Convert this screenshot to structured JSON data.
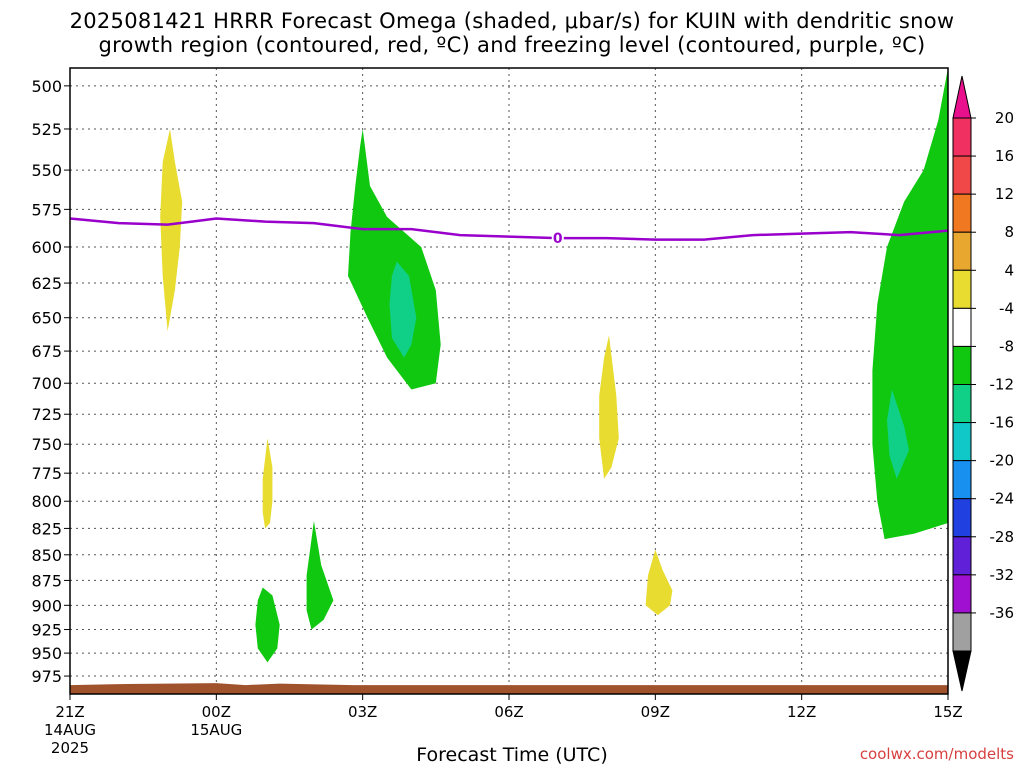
{
  "title_line1": "2025081421 HRRR Forecast Omega (shaded, μbar/s) for KUIN with dendritic snow",
  "title_line2": "growth region (contoured, red, ºC) and freezing level (contoured, purple, ºC)",
  "credit": "coolwx.com/modelts",
  "chart_data": {
    "type": "area",
    "xlabel": "Forecast Time (UTC)",
    "ylabel": "",
    "x_ticks": [
      {
        "hour": 0,
        "label": "21Z",
        "sub": [
          "14AUG",
          "2025"
        ]
      },
      {
        "hour": 3,
        "label": "00Z",
        "sub": [
          "15AUG"
        ]
      },
      {
        "hour": 6,
        "label": "03Z",
        "sub": []
      },
      {
        "hour": 9,
        "label": "06Z",
        "sub": []
      },
      {
        "hour": 12,
        "label": "09Z",
        "sub": []
      },
      {
        "hour": 15,
        "label": "12Z",
        "sub": []
      },
      {
        "hour": 18,
        "label": "15Z",
        "sub": []
      }
    ],
    "xlim": [
      0,
      18
    ],
    "y_ticks": [
      500,
      525,
      550,
      575,
      600,
      625,
      650,
      675,
      700,
      725,
      750,
      775,
      800,
      825,
      850,
      875,
      900,
      925,
      950,
      975
    ],
    "ylim": [
      490,
      995
    ],
    "y_scale": "log",
    "grid": true,
    "colorbar": {
      "labels": [
        "20",
        "16",
        "12",
        "8",
        "4",
        "-4",
        "-8",
        "-12",
        "-16",
        "-20",
        "-24",
        "-28",
        "-32",
        "-36"
      ],
      "colors": [
        "#f03060",
        "#f04848",
        "#f07820",
        "#e8a830",
        "#e8dc30",
        "#ffffff",
        "#10c810",
        "#10d088",
        "#10c8c8",
        "#1890f0",
        "#2040e0",
        "#6020d8",
        "#a010d0",
        "#a0a0a0"
      ]
    },
    "freezing_level": {
      "color": "#9900cc",
      "contour_label": "0",
      "label_hour": 10.0,
      "x": [
        0,
        1,
        2,
        2.5,
        3,
        4,
        5,
        6,
        7,
        8,
        9,
        10,
        11,
        12,
        13,
        14,
        15,
        16,
        17,
        18
      ],
      "y": [
        581,
        584,
        585,
        583,
        581,
        583,
        584,
        588,
        588,
        592,
        593,
        594,
        594,
        595,
        595,
        592,
        591,
        590,
        592,
        589
      ]
    },
    "terrain": {
      "color": "#a0522d",
      "surface_hpa": 985
    },
    "regions": [
      {
        "value_class": "4",
        "points": [
          [
            2.05,
            525
          ],
          [
            2.15,
            545
          ],
          [
            2.3,
            570
          ],
          [
            2.25,
            600
          ],
          [
            2.15,
            630
          ],
          [
            2.0,
            660
          ],
          [
            1.9,
            620
          ],
          [
            1.85,
            580
          ],
          [
            1.9,
            545
          ]
        ]
      },
      {
        "value_class": "4",
        "points": [
          [
            4.05,
            745
          ],
          [
            4.15,
            770
          ],
          [
            4.15,
            800
          ],
          [
            4.1,
            820
          ],
          [
            4.0,
            825
          ],
          [
            3.95,
            810
          ],
          [
            3.95,
            780
          ]
        ]
      },
      {
        "value_class": "-4",
        "points": [
          [
            3.95,
            882
          ],
          [
            4.15,
            890
          ],
          [
            4.3,
            920
          ],
          [
            4.25,
            945
          ],
          [
            4.05,
            960
          ],
          [
            3.85,
            945
          ],
          [
            3.8,
            920
          ],
          [
            3.85,
            895
          ]
        ]
      },
      {
        "value_class": "-4",
        "points": [
          [
            6.0,
            525
          ],
          [
            6.15,
            560
          ],
          [
            6.5,
            580
          ],
          [
            7.2,
            600
          ],
          [
            7.5,
            630
          ],
          [
            7.6,
            670
          ],
          [
            7.5,
            700
          ],
          [
            7.0,
            705
          ],
          [
            6.5,
            680
          ],
          [
            6.1,
            650
          ],
          [
            5.7,
            620
          ],
          [
            5.75,
            590
          ],
          [
            5.85,
            560
          ],
          [
            5.95,
            535
          ]
        ]
      },
      {
        "value_class": "-8",
        "points": [
          [
            6.7,
            610
          ],
          [
            6.95,
            620
          ],
          [
            7.1,
            650
          ],
          [
            7.0,
            670
          ],
          [
            6.85,
            680
          ],
          [
            6.6,
            665
          ],
          [
            6.55,
            640
          ],
          [
            6.6,
            620
          ]
        ]
      },
      {
        "value_class": "-4",
        "points": [
          [
            5.0,
            818
          ],
          [
            5.15,
            860
          ],
          [
            5.4,
            895
          ],
          [
            5.2,
            915
          ],
          [
            4.95,
            925
          ],
          [
            4.85,
            905
          ],
          [
            4.85,
            870
          ],
          [
            4.95,
            835
          ]
        ]
      },
      {
        "value_class": "4",
        "points": [
          [
            11.05,
            663
          ],
          [
            11.2,
            710
          ],
          [
            11.25,
            745
          ],
          [
            11.1,
            770
          ],
          [
            10.95,
            780
          ],
          [
            10.85,
            745
          ],
          [
            10.85,
            710
          ],
          [
            10.95,
            680
          ]
        ]
      },
      {
        "value_class": "4",
        "points": [
          [
            12.0,
            845
          ],
          [
            12.15,
            865
          ],
          [
            12.35,
            885
          ],
          [
            12.3,
            900
          ],
          [
            12.05,
            910
          ],
          [
            11.8,
            900
          ],
          [
            11.85,
            870
          ]
        ]
      },
      {
        "value_class": "-4",
        "points": [
          [
            18.0,
            490
          ],
          [
            17.8,
            520
          ],
          [
            17.5,
            550
          ],
          [
            17.1,
            570
          ],
          [
            16.75,
            600
          ],
          [
            16.55,
            640
          ],
          [
            16.45,
            690
          ],
          [
            16.45,
            750
          ],
          [
            16.55,
            800
          ],
          [
            16.7,
            835
          ],
          [
            17.3,
            830
          ],
          [
            18.0,
            820
          ]
        ]
      },
      {
        "value_class": "-8",
        "points": [
          [
            16.85,
            705
          ],
          [
            17.1,
            735
          ],
          [
            17.2,
            755
          ],
          [
            16.95,
            780
          ],
          [
            16.8,
            760
          ],
          [
            16.75,
            730
          ]
        ]
      }
    ]
  }
}
